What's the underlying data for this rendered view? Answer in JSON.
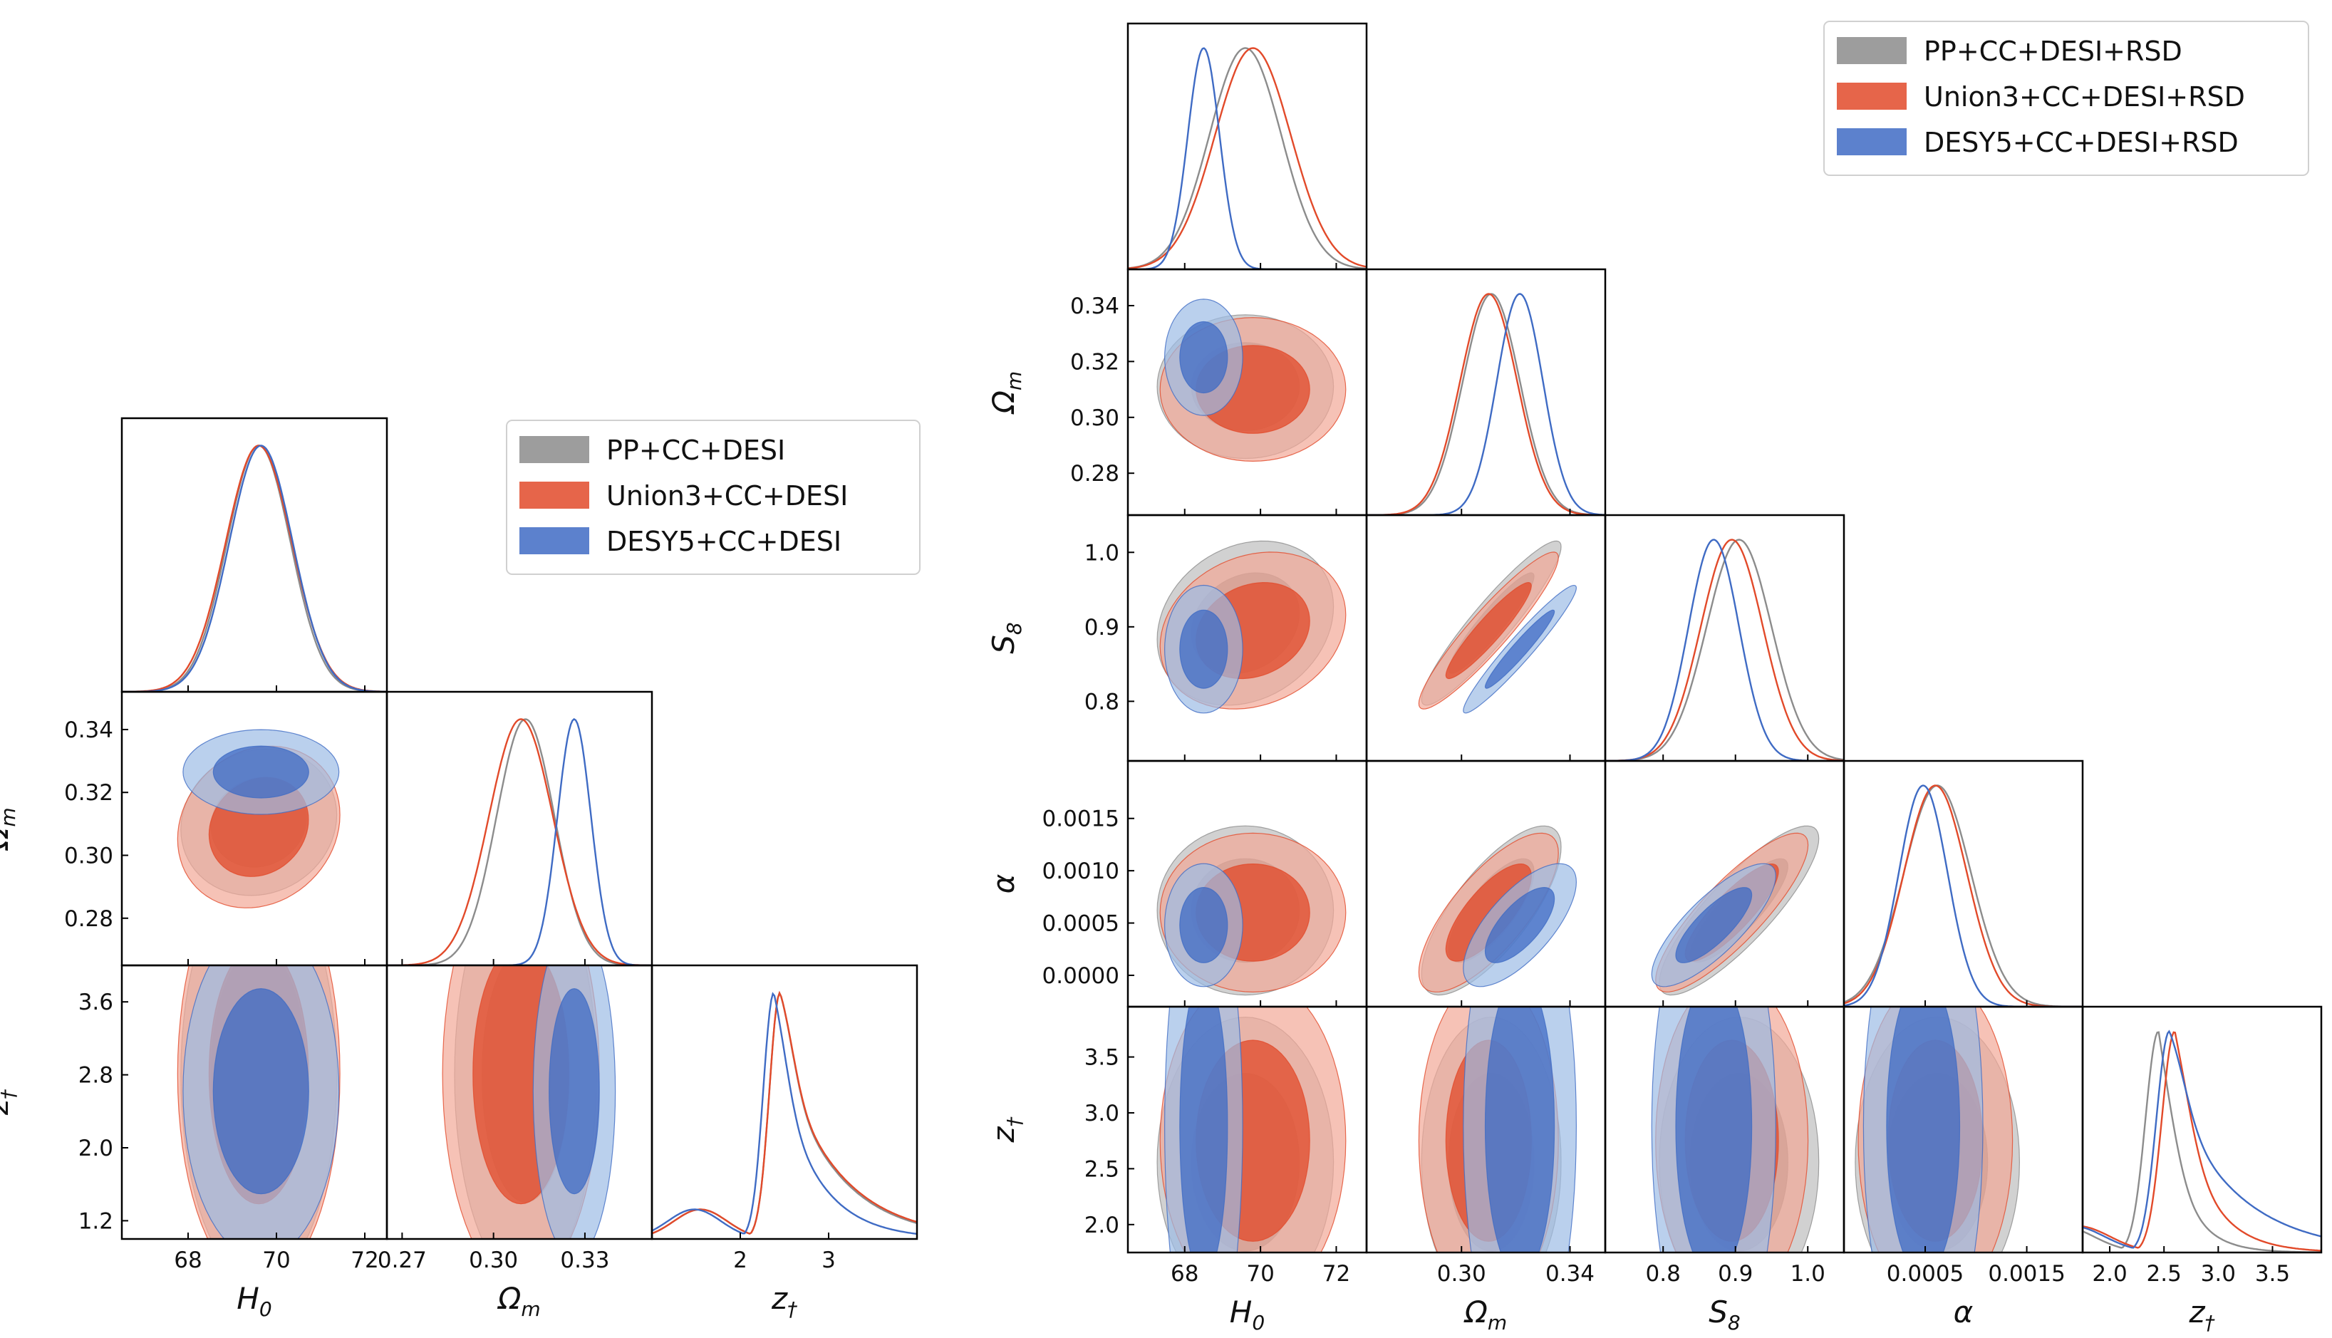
{
  "figure": {
    "colors": {
      "PP": "#8c8c8c",
      "Union3": "#e24a2a",
      "DESY5": "#3f6bc4",
      "axis": "#000000"
    }
  },
  "chart_data": [
    {
      "type": "triangle",
      "name": "left-corner-plot",
      "title": "",
      "parameters": [
        {
          "id": "H0",
          "base": "H",
          "sub": "0",
          "range": [
            66.5,
            72.5
          ],
          "ticks": [
            "68",
            "70",
            "72"
          ],
          "tick_values": [
            68,
            70,
            72
          ]
        },
        {
          "id": "Om",
          "base": "Ω",
          "sub": "m",
          "range": [
            0.265,
            0.352
          ],
          "ticks": [
            "0.27",
            "0.30",
            "0.33"
          ],
          "tick_values": [
            0.27,
            0.3,
            0.33
          ]
        },
        {
          "id": "zt",
          "base": "z",
          "sub": "†",
          "range": [
            1.0,
            4.0
          ],
          "ticks": [
            "2",
            "3"
          ],
          "tick_values": [
            2,
            3
          ],
          "y_ticks": [
            "1.2",
            "2.0",
            "2.8",
            "3.6"
          ],
          "y_tick_values": [
            1.2,
            2.0,
            2.8,
            3.6
          ]
        }
      ],
      "y_label_overrides": {
        "Om": [
          "0.28",
          "0.30",
          "0.32",
          "0.34"
        ],
        "Om_values": [
          0.28,
          0.3,
          0.32,
          0.34
        ]
      },
      "legend": {
        "position": "top-right",
        "entries": [
          "PP+CC+DESI",
          "Union3+CC+DESI",
          "DESY5+CC+DESI"
        ]
      },
      "series": [
        {
          "name": "PP+CC+DESI",
          "color_key": "PP",
          "H0": {
            "mean": 69.6,
            "sigma": 0.72
          },
          "Om": {
            "mean": 0.3105,
            "sigma": 0.0095
          },
          "zt": {
            "peak": 2.45,
            "tail": 0.58
          },
          "corr": {
            "H0_Om": 0.1
          }
        },
        {
          "name": "Union3+CC+DESI",
          "color_key": "Union3",
          "H0": {
            "mean": 69.6,
            "sigma": 0.75
          },
          "Om": {
            "mean": 0.309,
            "sigma": 0.0105
          },
          "zt": {
            "peak": 2.45,
            "tail": 0.6
          },
          "corr": {
            "H0_Om": 0.15
          }
        },
        {
          "name": "DESY5+CC+DESI",
          "color_key": "DESY5",
          "H0": {
            "mean": 69.65,
            "sigma": 0.72
          },
          "Om": {
            "mean": 0.3265,
            "sigma": 0.0055
          },
          "zt": {
            "peak": 2.38,
            "tail": 0.4
          },
          "corr": {
            "H0_Om": 0.0
          }
        }
      ]
    },
    {
      "type": "triangle",
      "name": "right-corner-plot",
      "title": "",
      "parameters": [
        {
          "id": "H0",
          "base": "H",
          "sub": "0",
          "range": [
            66.5,
            72.8
          ],
          "ticks": [
            "68",
            "70",
            "72"
          ],
          "tick_values": [
            68,
            70,
            72
          ]
        },
        {
          "id": "Om",
          "base": "Ω",
          "sub": "m",
          "range": [
            0.265,
            0.353
          ],
          "ticks": [
            "0.30",
            "0.34"
          ],
          "tick_values": [
            0.3,
            0.34
          ],
          "y_ticks": [
            "0.28",
            "0.30",
            "0.32",
            "0.34"
          ],
          "y_tick_values": [
            0.28,
            0.3,
            0.32,
            0.34
          ]
        },
        {
          "id": "S8",
          "base": "S",
          "sub": "8",
          "range": [
            0.72,
            1.05
          ],
          "ticks": [
            "0.8",
            "0.9",
            "1.0"
          ],
          "tick_values": [
            0.8,
            0.9,
            1.0
          ],
          "y_ticks": [
            "0.8",
            "0.9",
            "1.0"
          ],
          "y_tick_values": [
            0.8,
            0.9,
            1.0
          ]
        },
        {
          "id": "alpha",
          "base": "α",
          "sub": "",
          "range": [
            -0.0003,
            0.00205
          ],
          "ticks": [
            "0.0005",
            "0.0015"
          ],
          "tick_values": [
            0.0005,
            0.0015
          ],
          "y_ticks": [
            "0.0000",
            "0.0005",
            "0.0010",
            "0.0015"
          ],
          "y_tick_values": [
            0.0,
            0.0005,
            0.001,
            0.0015
          ]
        },
        {
          "id": "zt",
          "base": "z",
          "sub": "†",
          "range": [
            1.75,
            3.95
          ],
          "ticks": [
            "2.0",
            "2.5",
            "3.0",
            "3.5"
          ],
          "tick_values": [
            2.0,
            2.5,
            3.0,
            3.5
          ],
          "y_ticks": [
            "2.0",
            "2.5",
            "3.0",
            "3.5"
          ],
          "y_tick_values": [
            2.0,
            2.5,
            3.0,
            3.5
          ]
        }
      ],
      "legend": {
        "position": "top-right",
        "entries": [
          "PP+CC+DESI+RSD",
          "Union3+CC+DESI+RSD",
          "DESY5+CC+DESI+RSD"
        ]
      },
      "series": [
        {
          "name": "PP+CC+DESI+RSD",
          "color_key": "PP",
          "H0": {
            "mean": 69.6,
            "sigma": 0.95
          },
          "Om": {
            "mean": 0.311,
            "sigma": 0.0105
          },
          "S8": {
            "mean": 0.905,
            "sigma": 0.045
          },
          "alpha": {
            "mean": 0.00062,
            "sigma": 0.00033
          },
          "zt": {
            "peak": 2.45,
            "tail": 0.18
          },
          "corr": {
            "Om_S8": 0.93,
            "Om_alpha": 0.75,
            "S8_alpha": 0.85,
            "H0_S8": 0.2
          }
        },
        {
          "name": "Union3+CC+DESI+RSD",
          "color_key": "Union3",
          "H0": {
            "mean": 69.8,
            "sigma": 1.0
          },
          "Om": {
            "mean": 0.31,
            "sigma": 0.0105
          },
          "S8": {
            "mean": 0.895,
            "sigma": 0.043
          },
          "alpha": {
            "mean": 0.0006,
            "sigma": 0.00031
          },
          "zt": {
            "peak": 2.6,
            "tail": 0.25
          },
          "corr": {
            "Om_S8": 0.93,
            "Om_alpha": 0.75,
            "S8_alpha": 0.85,
            "H0_S8": 0.2
          }
        },
        {
          "name": "DESY5+CC+DESI+RSD",
          "color_key": "DESY5",
          "H0": {
            "mean": 68.5,
            "sigma": 0.42
          },
          "Om": {
            "mean": 0.3215,
            "sigma": 0.0085
          },
          "S8": {
            "mean": 0.87,
            "sigma": 0.035
          },
          "alpha": {
            "mean": 0.00048,
            "sigma": 0.00024
          },
          "zt": {
            "peak": 2.55,
            "tail": 0.55
          },
          "corr": {
            "Om_S8": 0.96,
            "Om_alpha": 0.7,
            "S8_alpha": 0.8,
            "H0_S8": 0.0
          }
        }
      ]
    }
  ]
}
